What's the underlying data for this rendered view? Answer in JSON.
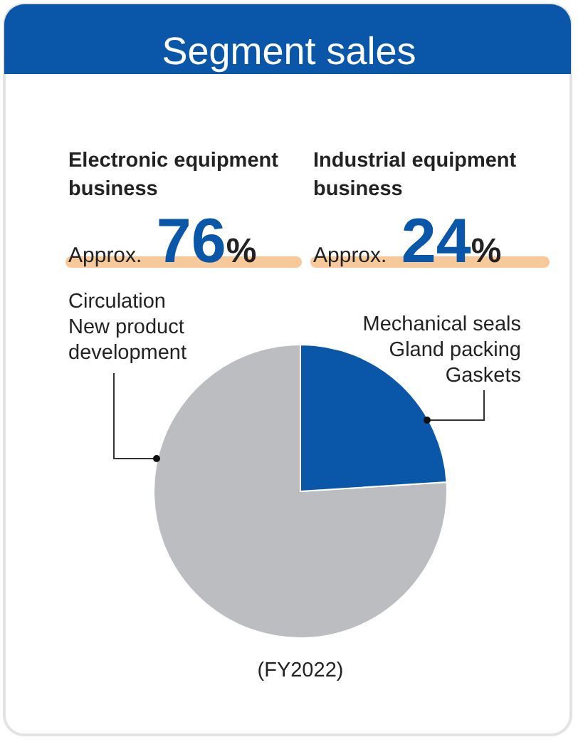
{
  "chart_data": {
    "type": "pie",
    "title": "Segment sales",
    "categories": [
      "Electronic equipment business",
      "Industrial equipment business"
    ],
    "values": [
      76,
      24
    ],
    "colors": [
      "#bcbdc0",
      "#0a56a8"
    ],
    "value_labels": [
      "Approx. 76%",
      "Approx. 24%"
    ],
    "annotations": [
      "Circulation\nNew product\ndevelopment",
      "Mechanical seals\nGland packing\nGaskets",
      "(FY2022)"
    ]
  }
}
